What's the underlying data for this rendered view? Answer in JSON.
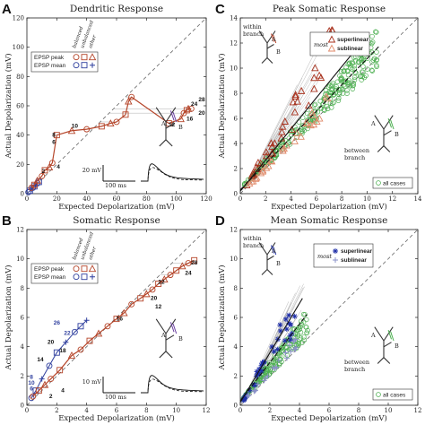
{
  "colors": {
    "peak": "#b5452a",
    "mean": "#2f3f9e",
    "green": "#4caf50",
    "grey": "#9a9a9a",
    "black": "#111111"
  },
  "chart_data": [
    {
      "letter": "A",
      "type": "line",
      "title": "Dendritic Response",
      "xlabel": "Expected Depolarization (mV)",
      "ylabel": "Actual Depolarization (mV)",
      "xlim": [
        0,
        120
      ],
      "ylim": [
        0,
        120
      ],
      "xticks": [
        0,
        20,
        40,
        60,
        80,
        100,
        120
      ],
      "yticks": [
        0,
        20,
        40,
        60,
        80,
        100,
        120
      ],
      "legend": {
        "rows": [
          "EPSP peak",
          "EPSP mean"
        ],
        "cols": [
          "balanced",
          "unbalanced",
          "other"
        ]
      },
      "series": [
        {
          "name": "EPSP peak",
          "x": [
            3,
            5,
            7,
            10,
            12,
            15,
            17,
            20,
            30,
            40,
            50,
            56,
            60,
            66,
            68,
            70,
            95,
            103,
            105,
            107,
            108,
            110
          ],
          "y": [
            4,
            6,
            9,
            12,
            16,
            18,
            21,
            40,
            43,
            44,
            46,
            48,
            49,
            54,
            63,
            66,
            48,
            51,
            55,
            57,
            58,
            58
          ]
        },
        {
          "name": "EPSP mean",
          "x": [
            1,
            2,
            3,
            4,
            5,
            6,
            7,
            8
          ],
          "y": [
            1,
            2,
            3,
            4,
            5,
            6,
            7,
            8
          ]
        }
      ],
      "labels": [
        {
          "text": "2",
          "x": 11,
          "y": 14,
          "color": "black"
        },
        {
          "text": "4",
          "x": 21,
          "y": 17,
          "color": "black"
        },
        {
          "text": "6",
          "x": 18,
          "y": 34,
          "color": "black"
        },
        {
          "text": "8",
          "x": 18,
          "y": 39,
          "color": "black"
        },
        {
          "text": "10",
          "x": 32,
          "y": 45,
          "color": "black"
        },
        {
          "text": "12",
          "x": 97,
          "y": 46,
          "color": "black"
        },
        {
          "text": "16",
          "x": 109,
          "y": 50,
          "color": "black"
        },
        {
          "text": "20",
          "x": 117,
          "y": 54,
          "color": "black"
        },
        {
          "text": "24",
          "x": 112,
          "y": 60,
          "color": "black"
        },
        {
          "text": "28",
          "x": 117,
          "y": 63,
          "color": "black"
        }
      ],
      "scalebar": {
        "v": "20 mV",
        "t": "100 ms"
      },
      "inset_labels": [
        "A",
        "B"
      ]
    },
    {
      "letter": "B",
      "type": "line",
      "title": "Somatic Response",
      "xlabel": "Expected Depolarization (mV)",
      "ylabel": "Actual Depolarization (mV)",
      "xlim": [
        0,
        12
      ],
      "ylim": [
        0,
        12
      ],
      "xticks": [
        0,
        2,
        4,
        6,
        8,
        10,
        12
      ],
      "yticks": [
        0,
        2,
        4,
        6,
        8,
        10,
        12
      ],
      "legend": {
        "rows": [
          "EPSP peak",
          "EPSP mean"
        ],
        "cols": [
          "balanced",
          "unbalanced",
          "other"
        ]
      },
      "series": [
        {
          "name": "EPSP peak",
          "x": [
            0.4,
            0.8,
            1.2,
            1.6,
            2.2,
            3.0,
            3.6,
            4.2,
            4.8,
            5.4,
            6.0,
            6.5,
            7.0,
            7.6,
            8.0,
            8.4,
            8.8,
            9.2,
            9.6,
            10.0,
            10.4,
            10.8,
            11.2
          ],
          "y": [
            0.6,
            1.0,
            1.4,
            1.8,
            2.4,
            3.4,
            3.8,
            4.4,
            4.9,
            5.4,
            5.9,
            6.3,
            6.9,
            7.3,
            7.6,
            7.9,
            8.3,
            8.6,
            8.9,
            9.2,
            9.5,
            9.7,
            9.9
          ]
        },
        {
          "name": "EPSP mean",
          "x": [
            0.3,
            0.6,
            1.0,
            1.5,
            2.0,
            2.6,
            3.2,
            3.6,
            4.0
          ],
          "y": [
            0.5,
            1.0,
            1.8,
            2.7,
            3.6,
            4.3,
            5.0,
            5.4,
            5.8
          ]
        }
      ],
      "labels": [
        {
          "text": "2",
          "x": 1.6,
          "y": 0.5,
          "color": "black"
        },
        {
          "text": "4",
          "x": 2.4,
          "y": 0.9,
          "color": "black"
        },
        {
          "text": "8",
          "x": 0.3,
          "y": 1.8,
          "color": "mean"
        },
        {
          "text": "10",
          "x": 0.3,
          "y": 1.4,
          "color": "mean"
        },
        {
          "text": "6",
          "x": 0.3,
          "y": 1.0,
          "color": "mean"
        },
        {
          "text": "14",
          "x": 0.9,
          "y": 3.0,
          "color": "black"
        },
        {
          "text": "18",
          "x": 2.4,
          "y": 3.6,
          "color": "black"
        },
        {
          "text": "20",
          "x": 1.6,
          "y": 4.2,
          "color": "black"
        },
        {
          "text": "22",
          "x": 2.7,
          "y": 4.8,
          "color": "mean"
        },
        {
          "text": "26",
          "x": 2.0,
          "y": 5.5,
          "color": "mean"
        },
        {
          "text": "16",
          "x": 6.2,
          "y": 5.8,
          "color": "black"
        },
        {
          "text": "12",
          "x": 8.8,
          "y": 6.6,
          "color": "black"
        },
        {
          "text": "20",
          "x": 8.5,
          "y": 7.2,
          "color": "black"
        },
        {
          "text": "22",
          "x": 9.0,
          "y": 8.3,
          "color": "black"
        },
        {
          "text": "24",
          "x": 10.8,
          "y": 8.9,
          "color": "black"
        },
        {
          "text": "28",
          "x": 11.2,
          "y": 9.6,
          "color": "black"
        }
      ],
      "scalebar": {
        "v": "10 mV",
        "t": "100 ms"
      },
      "inset_labels": [
        "A",
        "B"
      ]
    },
    {
      "letter": "C",
      "type": "scatter",
      "title": "Peak Somatic Response",
      "xlabel": "Expected Depolarization (mV)",
      "ylabel": "Actual Depolarization (mV)",
      "xlim": [
        0,
        14
      ],
      "ylim": [
        0,
        14
      ],
      "xticks": [
        0,
        2,
        4,
        6,
        8,
        10,
        12,
        14
      ],
      "yticks": [
        0,
        2,
        4,
        6,
        8,
        10,
        12,
        14
      ],
      "legend": {
        "lead": "most",
        "items": [
          "superlinear",
          "sublinear"
        ],
        "green": "all cases"
      },
      "inset_labels": {
        "within": [
          "within",
          "branch"
        ],
        "between": [
          "between",
          "branch"
        ],
        "ab": [
          "A",
          "B"
        ]
      }
    },
    {
      "letter": "D",
      "type": "scatter",
      "title": "Mean Somatic Response",
      "xlabel": "Expected Depolarization (mV)",
      "ylabel": "Actual Depolarization (mV)",
      "xlim": [
        0,
        12
      ],
      "ylim": [
        0,
        12
      ],
      "xticks": [
        0,
        2,
        4,
        6,
        8,
        10,
        12
      ],
      "yticks": [
        0,
        2,
        4,
        6,
        8,
        10,
        12
      ],
      "legend": {
        "lead": "most",
        "items": [
          "superlinear",
          "sublinear"
        ],
        "green": "all cases"
      },
      "inset_labels": {
        "within": [
          "within",
          "branch"
        ],
        "between": [
          "between",
          "branch"
        ],
        "ab": [
          "A",
          "B"
        ]
      }
    }
  ]
}
